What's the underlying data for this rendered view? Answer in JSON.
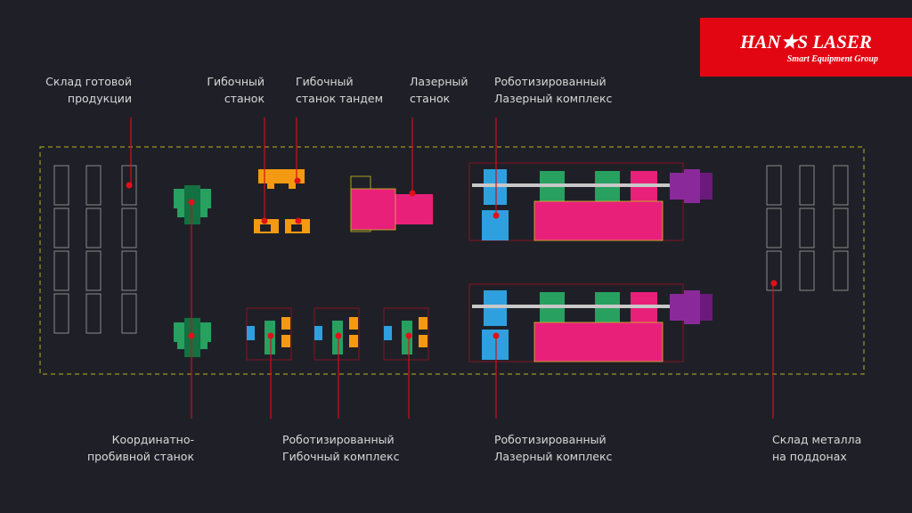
{
  "logo": {
    "title": "HAN★S LASER",
    "subtitle": "Smart Equipment Group"
  },
  "labels": {
    "top": [
      {
        "lines": [
          "Склад готовой",
          "продукции"
        ]
      },
      {
        "lines": [
          "Гибочный",
          "станок"
        ]
      },
      {
        "lines": [
          "Гибочный",
          "станок тандем"
        ]
      },
      {
        "lines": [
          "Лазерный",
          "станок"
        ]
      },
      {
        "lines": [
          "Роботизированный",
          "Лазерный комплекс"
        ]
      }
    ],
    "bottom": [
      {
        "lines": [
          "Координатно-",
          "пробивной станок"
        ]
      },
      {
        "lines": [
          "Роботизированный",
          "Гибочный комплекс"
        ]
      },
      {
        "lines": [
          "Роботизированный",
          "Лазерный комплекс"
        ]
      },
      {
        "lines": [
          "Склад металла",
          "на поддонах"
        ]
      }
    ]
  }
}
